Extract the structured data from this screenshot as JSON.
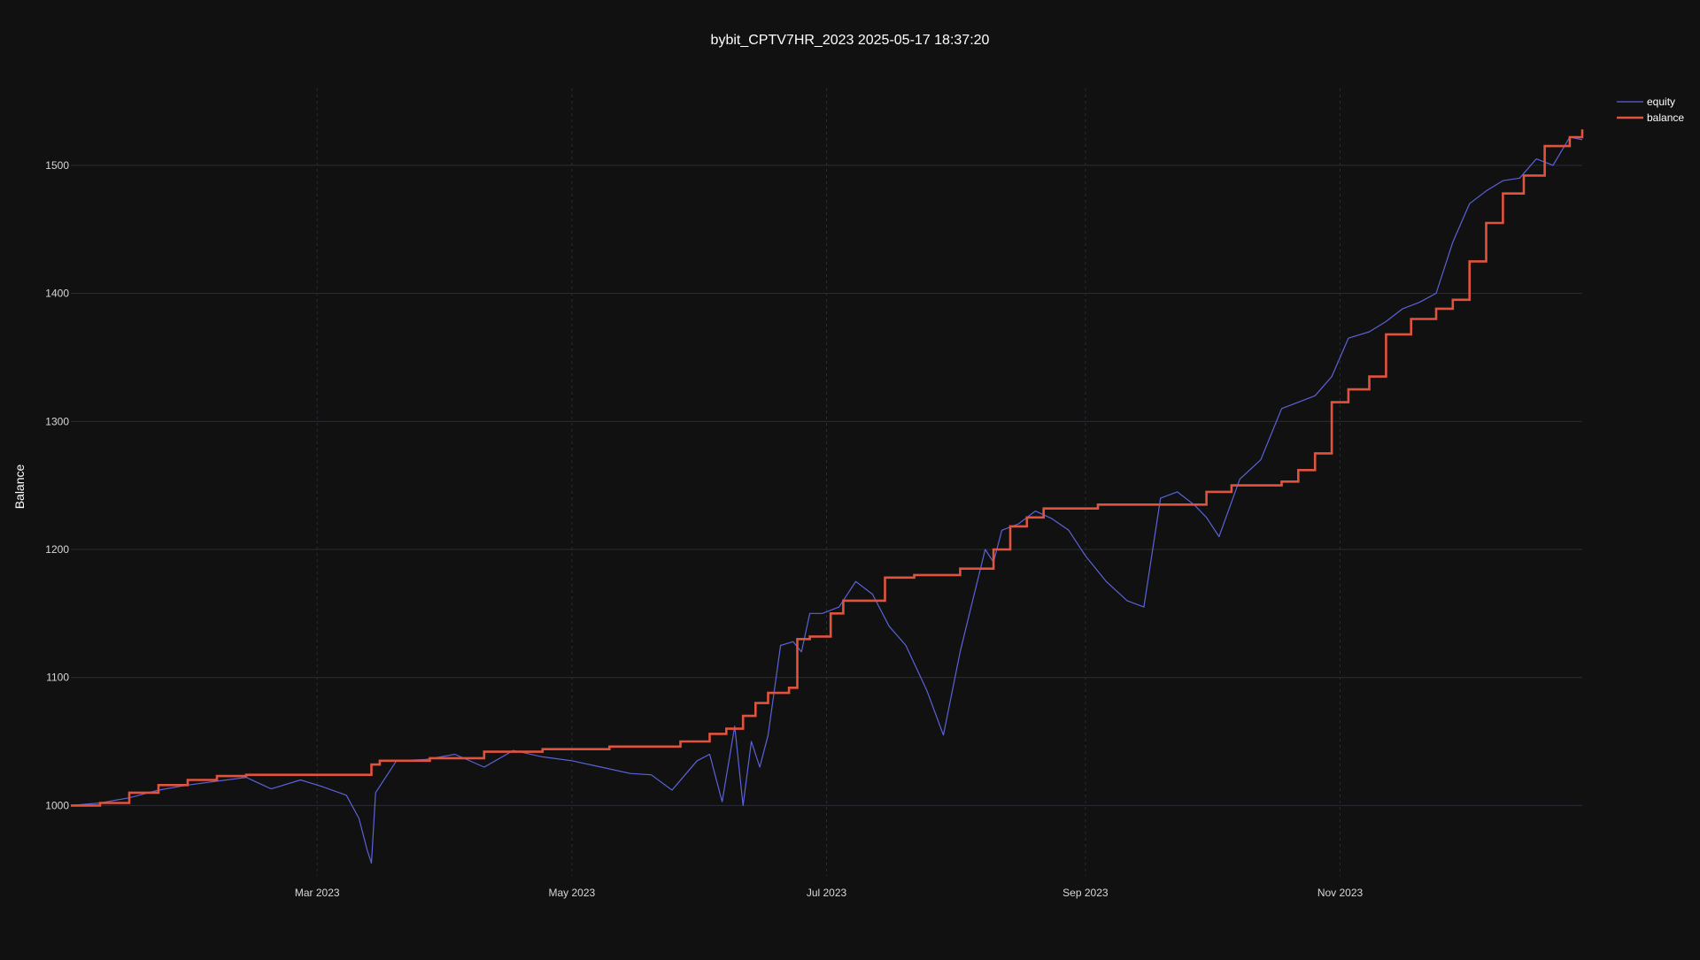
{
  "chart_data": {
    "type": "line",
    "title": "bybit_CPTV7HR_2023 2025-05-17 18:37:20",
    "xlabel": "",
    "ylabel": "Balance",
    "xlim": [
      "2023-01-01",
      "2023-12-29"
    ],
    "ylim": [
      945,
      1560
    ],
    "grid": true,
    "legend_position": "top-right",
    "x_ticks": [
      {
        "date": "2023-03-01",
        "label": "Mar 2023"
      },
      {
        "date": "2023-05-01",
        "label": "May 2023"
      },
      {
        "date": "2023-07-01",
        "label": "Jul 2023"
      },
      {
        "date": "2023-09-01",
        "label": "Sep 2023"
      },
      {
        "date": "2023-11-01",
        "label": "Nov 2023"
      }
    ],
    "y_ticks": [
      1000,
      1100,
      1200,
      1300,
      1400,
      1500
    ],
    "colors": {
      "background": "#111111",
      "grid": "#2a2d35",
      "text": "#ffffff",
      "tick_text": "#d8d8d8",
      "equity": "#5a63d8",
      "balance": "#e0533d"
    },
    "series": [
      {
        "name": "equity",
        "x": [
          "2023-01-01",
          "2023-01-08",
          "2023-01-15",
          "2023-01-22",
          "2023-01-29",
          "2023-02-05",
          "2023-02-12",
          "2023-02-18",
          "2023-02-25",
          "2023-03-02",
          "2023-03-08",
          "2023-03-11",
          "2023-03-13",
          "2023-03-14",
          "2023-03-15",
          "2023-03-20",
          "2023-03-27",
          "2023-04-03",
          "2023-04-10",
          "2023-04-17",
          "2023-04-24",
          "2023-05-01",
          "2023-05-08",
          "2023-05-15",
          "2023-05-20",
          "2023-05-25",
          "2023-05-31",
          "2023-06-03",
          "2023-06-06",
          "2023-06-09",
          "2023-06-11",
          "2023-06-13",
          "2023-06-15",
          "2023-06-17",
          "2023-06-20",
          "2023-06-23",
          "2023-06-25",
          "2023-06-27",
          "2023-06-30",
          "2023-07-04",
          "2023-07-08",
          "2023-07-12",
          "2023-07-16",
          "2023-07-20",
          "2023-07-25",
          "2023-07-29",
          "2023-08-02",
          "2023-08-05",
          "2023-08-08",
          "2023-08-10",
          "2023-08-12",
          "2023-08-16",
          "2023-08-20",
          "2023-08-24",
          "2023-08-28",
          "2023-09-01",
          "2023-09-06",
          "2023-09-11",
          "2023-09-15",
          "2023-09-19",
          "2023-09-23",
          "2023-09-27",
          "2023-09-30",
          "2023-10-03",
          "2023-10-08",
          "2023-10-13",
          "2023-10-18",
          "2023-10-22",
          "2023-10-26",
          "2023-10-30",
          "2023-11-03",
          "2023-11-08",
          "2023-11-12",
          "2023-11-16",
          "2023-11-20",
          "2023-11-24",
          "2023-11-28",
          "2023-12-02",
          "2023-12-06",
          "2023-12-10",
          "2023-12-14",
          "2023-12-18",
          "2023-12-22",
          "2023-12-26",
          "2023-12-29"
        ],
        "values": [
          1000,
          1002,
          1006,
          1012,
          1016,
          1019,
          1022,
          1013,
          1020,
          1015,
          1008,
          990,
          965,
          955,
          1010,
          1035,
          1036,
          1040,
          1030,
          1043,
          1038,
          1035,
          1030,
          1025,
          1024,
          1012,
          1035,
          1040,
          1003,
          1062,
          1000,
          1050,
          1030,
          1055,
          1125,
          1128,
          1120,
          1150,
          1150,
          1155,
          1175,
          1165,
          1140,
          1125,
          1090,
          1055,
          1120,
          1160,
          1200,
          1190,
          1215,
          1220,
          1230,
          1224,
          1215,
          1195,
          1175,
          1160,
          1155,
          1240,
          1245,
          1235,
          1225,
          1210,
          1255,
          1270,
          1310,
          1315,
          1320,
          1335,
          1365,
          1370,
          1378,
          1388,
          1393,
          1400,
          1440,
          1470,
          1480,
          1488,
          1490,
          1505,
          1500,
          1522,
          1520
        ]
      },
      {
        "name": "balance",
        "x": [
          "2023-01-01",
          "2023-01-08",
          "2023-01-15",
          "2023-01-22",
          "2023-01-29",
          "2023-02-05",
          "2023-02-12",
          "2023-02-18",
          "2023-03-01",
          "2023-03-13",
          "2023-03-14",
          "2023-03-16",
          "2023-03-28",
          "2023-04-10",
          "2023-04-24",
          "2023-05-10",
          "2023-05-20",
          "2023-05-27",
          "2023-06-03",
          "2023-06-07",
          "2023-06-11",
          "2023-06-14",
          "2023-06-17",
          "2023-06-22",
          "2023-06-24",
          "2023-06-27",
          "2023-07-02",
          "2023-07-05",
          "2023-07-10",
          "2023-07-15",
          "2023-07-22",
          "2023-08-02",
          "2023-08-05",
          "2023-08-10",
          "2023-08-14",
          "2023-08-18",
          "2023-08-22",
          "2023-09-04",
          "2023-09-21",
          "2023-09-30",
          "2023-10-06",
          "2023-10-18",
          "2023-10-22",
          "2023-10-26",
          "2023-10-30",
          "2023-11-03",
          "2023-11-08",
          "2023-11-12",
          "2023-11-18",
          "2023-11-24",
          "2023-11-28",
          "2023-12-02",
          "2023-12-06",
          "2023-12-10",
          "2023-12-15",
          "2023-12-20",
          "2023-12-26",
          "2023-12-29"
        ],
        "values": [
          1000,
          1002,
          1010,
          1016,
          1020,
          1023,
          1024,
          1024,
          1024,
          1024,
          1032,
          1035,
          1037,
          1042,
          1044,
          1046,
          1046,
          1050,
          1056,
          1060,
          1070,
          1080,
          1088,
          1092,
          1130,
          1132,
          1150,
          1160,
          1160,
          1178,
          1180,
          1185,
          1185,
          1200,
          1218,
          1225,
          1232,
          1235,
          1235,
          1245,
          1250,
          1253,
          1262,
          1275,
          1315,
          1325,
          1335,
          1368,
          1380,
          1388,
          1395,
          1425,
          1455,
          1478,
          1492,
          1515,
          1522,
          1528
        ]
      }
    ]
  }
}
